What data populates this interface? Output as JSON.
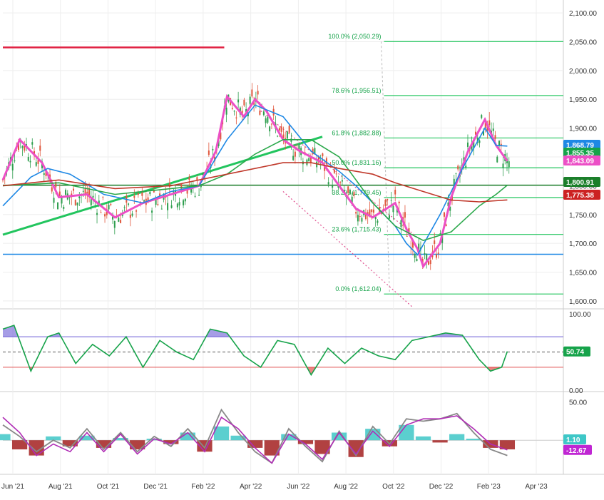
{
  "chart_data": [
    {
      "type": "line",
      "panel": "price",
      "x_ticks": [
        "Jun '21",
        "Aug '21",
        "Oct '21",
        "Dec '21",
        "Feb '22",
        "Apr '22",
        "Jun '22",
        "Aug '22",
        "Oct '22",
        "Dec '22",
        "Feb '23",
        "Apr '23"
      ],
      "y_ticks": [
        "2,100.00",
        "2,050.00",
        "2,000.00",
        "1,950.00",
        "1,900.00",
        "1,850.00",
        "1,800.00",
        "1,750.00",
        "1,700.00",
        "1,650.00",
        "1,600.00"
      ],
      "ylim": [
        1590,
        2110
      ],
      "fib_levels": [
        {
          "label": "100.0% (2,050.29)",
          "value": 2050.29
        },
        {
          "label": "78.6% (1,956.51)",
          "value": 1956.51
        },
        {
          "label": "61.8% (1,882.88)",
          "value": 1882.88
        },
        {
          "label": "50.0% (1,831.16)",
          "value": 1831.16
        },
        {
          "label": "38.2% (1,779.45)",
          "value": 1779.45
        },
        {
          "label": "23.6% (1,715.43)",
          "value": 1715.43
        },
        {
          "label": "0.0% (1,612.04)",
          "value": 1612.04
        }
      ],
      "price_badges": [
        {
          "value": "1,868.79",
          "color": "#1e88e5"
        },
        {
          "value": "1,855.35",
          "color": "#16a34a"
        },
        {
          "value": "1,843.09",
          "color": "#ec4fc6"
        },
        {
          "value": "1,800.91",
          "color": "#1b7f2a"
        },
        {
          "value": "1,775.38",
          "color": "#cc2222"
        }
      ],
      "horizontal_lines": [
        {
          "value": 2040,
          "color": "#e02040"
        },
        {
          "value": 1800.91,
          "color": "#1b7f2a"
        },
        {
          "value": 1681,
          "color": "#1e88e5"
        }
      ],
      "series": [
        {
          "color": "#ec4fc6",
          "x": [
            0,
            0.03,
            0.07,
            0.1,
            0.15,
            0.2,
            0.25,
            0.3,
            0.35,
            0.38,
            0.4,
            0.43,
            0.45,
            0.47,
            0.5,
            0.53,
            0.57,
            0.6,
            0.63,
            0.66,
            0.7,
            0.72,
            0.74,
            0.75,
            0.78,
            0.8,
            0.83,
            0.86,
            0.88,
            0.9
          ],
          "values": [
            1810,
            1880,
            1840,
            1780,
            1785,
            1745,
            1770,
            1785,
            1800,
            1860,
            1955,
            1920,
            1950,
            1930,
            1880,
            1860,
            1840,
            1800,
            1760,
            1745,
            1770,
            1725,
            1690,
            1660,
            1700,
            1780,
            1860,
            1915,
            1870,
            1843
          ]
        },
        {
          "color": "#1e88e5",
          "x": [
            0,
            0.05,
            0.08,
            0.12,
            0.18,
            0.25,
            0.3,
            0.35,
            0.4,
            0.45,
            0.5,
            0.55,
            0.6,
            0.63,
            0.66,
            0.7,
            0.72,
            0.74,
            0.78,
            0.82,
            0.86,
            0.88,
            0.9
          ],
          "values": [
            1765,
            1815,
            1830,
            1820,
            1785,
            1770,
            1790,
            1800,
            1880,
            1940,
            1920,
            1860,
            1825,
            1800,
            1770,
            1730,
            1700,
            1680,
            1750,
            1830,
            1900,
            1870,
            1868.79
          ]
        },
        {
          "color": "#2aa84a",
          "x": [
            0,
            0.1,
            0.2,
            0.3,
            0.35,
            0.4,
            0.45,
            0.5,
            0.55,
            0.6,
            0.63,
            0.66,
            0.7,
            0.75,
            0.8,
            0.85,
            0.88,
            0.9
          ],
          "values": [
            1800,
            1805,
            1785,
            1795,
            1800,
            1820,
            1855,
            1880,
            1880,
            1850,
            1810,
            1770,
            1730,
            1705,
            1720,
            1765,
            1785,
            1800.91
          ]
        },
        {
          "color": "#c0392b",
          "x": [
            0,
            0.1,
            0.2,
            0.3,
            0.4,
            0.5,
            0.55,
            0.6,
            0.66,
            0.7,
            0.75,
            0.8,
            0.85,
            0.9
          ],
          "values": [
            1800,
            1810,
            1795,
            1800,
            1820,
            1840,
            1840,
            1830,
            1820,
            1805,
            1790,
            1775,
            1772,
            1775.38
          ]
        }
      ]
    },
    {
      "type": "area",
      "panel": "oscillator",
      "ylim": [
        0,
        100
      ],
      "y_ticks": [
        "100.00",
        "0.00"
      ],
      "levels": [
        70,
        50,
        30
      ],
      "current": "50.74",
      "x": [
        0,
        0.02,
        0.05,
        0.08,
        0.1,
        0.13,
        0.16,
        0.19,
        0.22,
        0.25,
        0.28,
        0.31,
        0.34,
        0.37,
        0.4,
        0.43,
        0.46,
        0.49,
        0.52,
        0.55,
        0.58,
        0.61,
        0.64,
        0.67,
        0.7,
        0.73,
        0.76,
        0.79,
        0.82,
        0.85,
        0.87,
        0.89,
        0.9
      ],
      "values": [
        80,
        85,
        25,
        70,
        75,
        35,
        60,
        45,
        70,
        30,
        65,
        50,
        40,
        80,
        75,
        45,
        30,
        65,
        60,
        20,
        55,
        35,
        55,
        45,
        40,
        65,
        70,
        75,
        72,
        40,
        25,
        30,
        50.74
      ]
    },
    {
      "type": "bar",
      "panel": "macd",
      "ylim": [
        -40,
        60
      ],
      "y_ticks": [
        "50.00"
      ],
      "zero_label": "1.10",
      "signal_label": "-12.67",
      "x": [
        0,
        0.03,
        0.06,
        0.09,
        0.12,
        0.15,
        0.18,
        0.21,
        0.24,
        0.27,
        0.3,
        0.33,
        0.36,
        0.39,
        0.42,
        0.45,
        0.48,
        0.51,
        0.54,
        0.57,
        0.6,
        0.63,
        0.66,
        0.69,
        0.72,
        0.75,
        0.78,
        0.81,
        0.84,
        0.87,
        0.9
      ],
      "histogram": [
        8,
        -12,
        -20,
        5,
        -8,
        6,
        -10,
        3,
        -12,
        2,
        -5,
        10,
        -15,
        18,
        6,
        -10,
        -20,
        8,
        -5,
        -18,
        10,
        -22,
        15,
        -8,
        20,
        5,
        -3,
        8,
        2,
        -10,
        -12
      ],
      "macd": [
        20,
        5,
        -15,
        0,
        -10,
        15,
        -12,
        10,
        -15,
        5,
        -8,
        15,
        -10,
        40,
        10,
        -15,
        -30,
        15,
        -8,
        -28,
        12,
        -20,
        18,
        -5,
        28,
        25,
        28,
        35,
        10,
        -12,
        -20
      ],
      "signal": [
        30,
        10,
        -20,
        -5,
        -15,
        10,
        -15,
        8,
        -18,
        2,
        -5,
        10,
        -15,
        30,
        15,
        -10,
        -30,
        8,
        -5,
        -25,
        10,
        -18,
        12,
        -8,
        20,
        28,
        28,
        32,
        15,
        -5,
        -12.67
      ]
    }
  ]
}
